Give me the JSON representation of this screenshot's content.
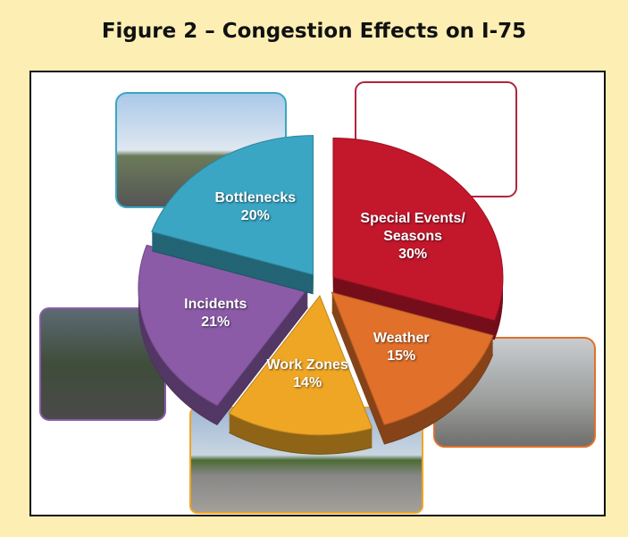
{
  "chart_data": {
    "type": "pie",
    "title": "Figure 2 – Congestion Effects on I-75",
    "categories": [
      "Special Events/ Seasons",
      "Weather",
      "Work Zones",
      "Incidents",
      "Bottlenecks"
    ],
    "values": [
      30,
      15,
      14,
      21,
      20
    ],
    "value_labels": [
      "30%",
      "15%",
      "14%",
      "21%",
      "20%"
    ],
    "colors": [
      "#c3172c",
      "#e0702a",
      "#efa624",
      "#8b5ba7",
      "#3aa6c3"
    ]
  }
}
